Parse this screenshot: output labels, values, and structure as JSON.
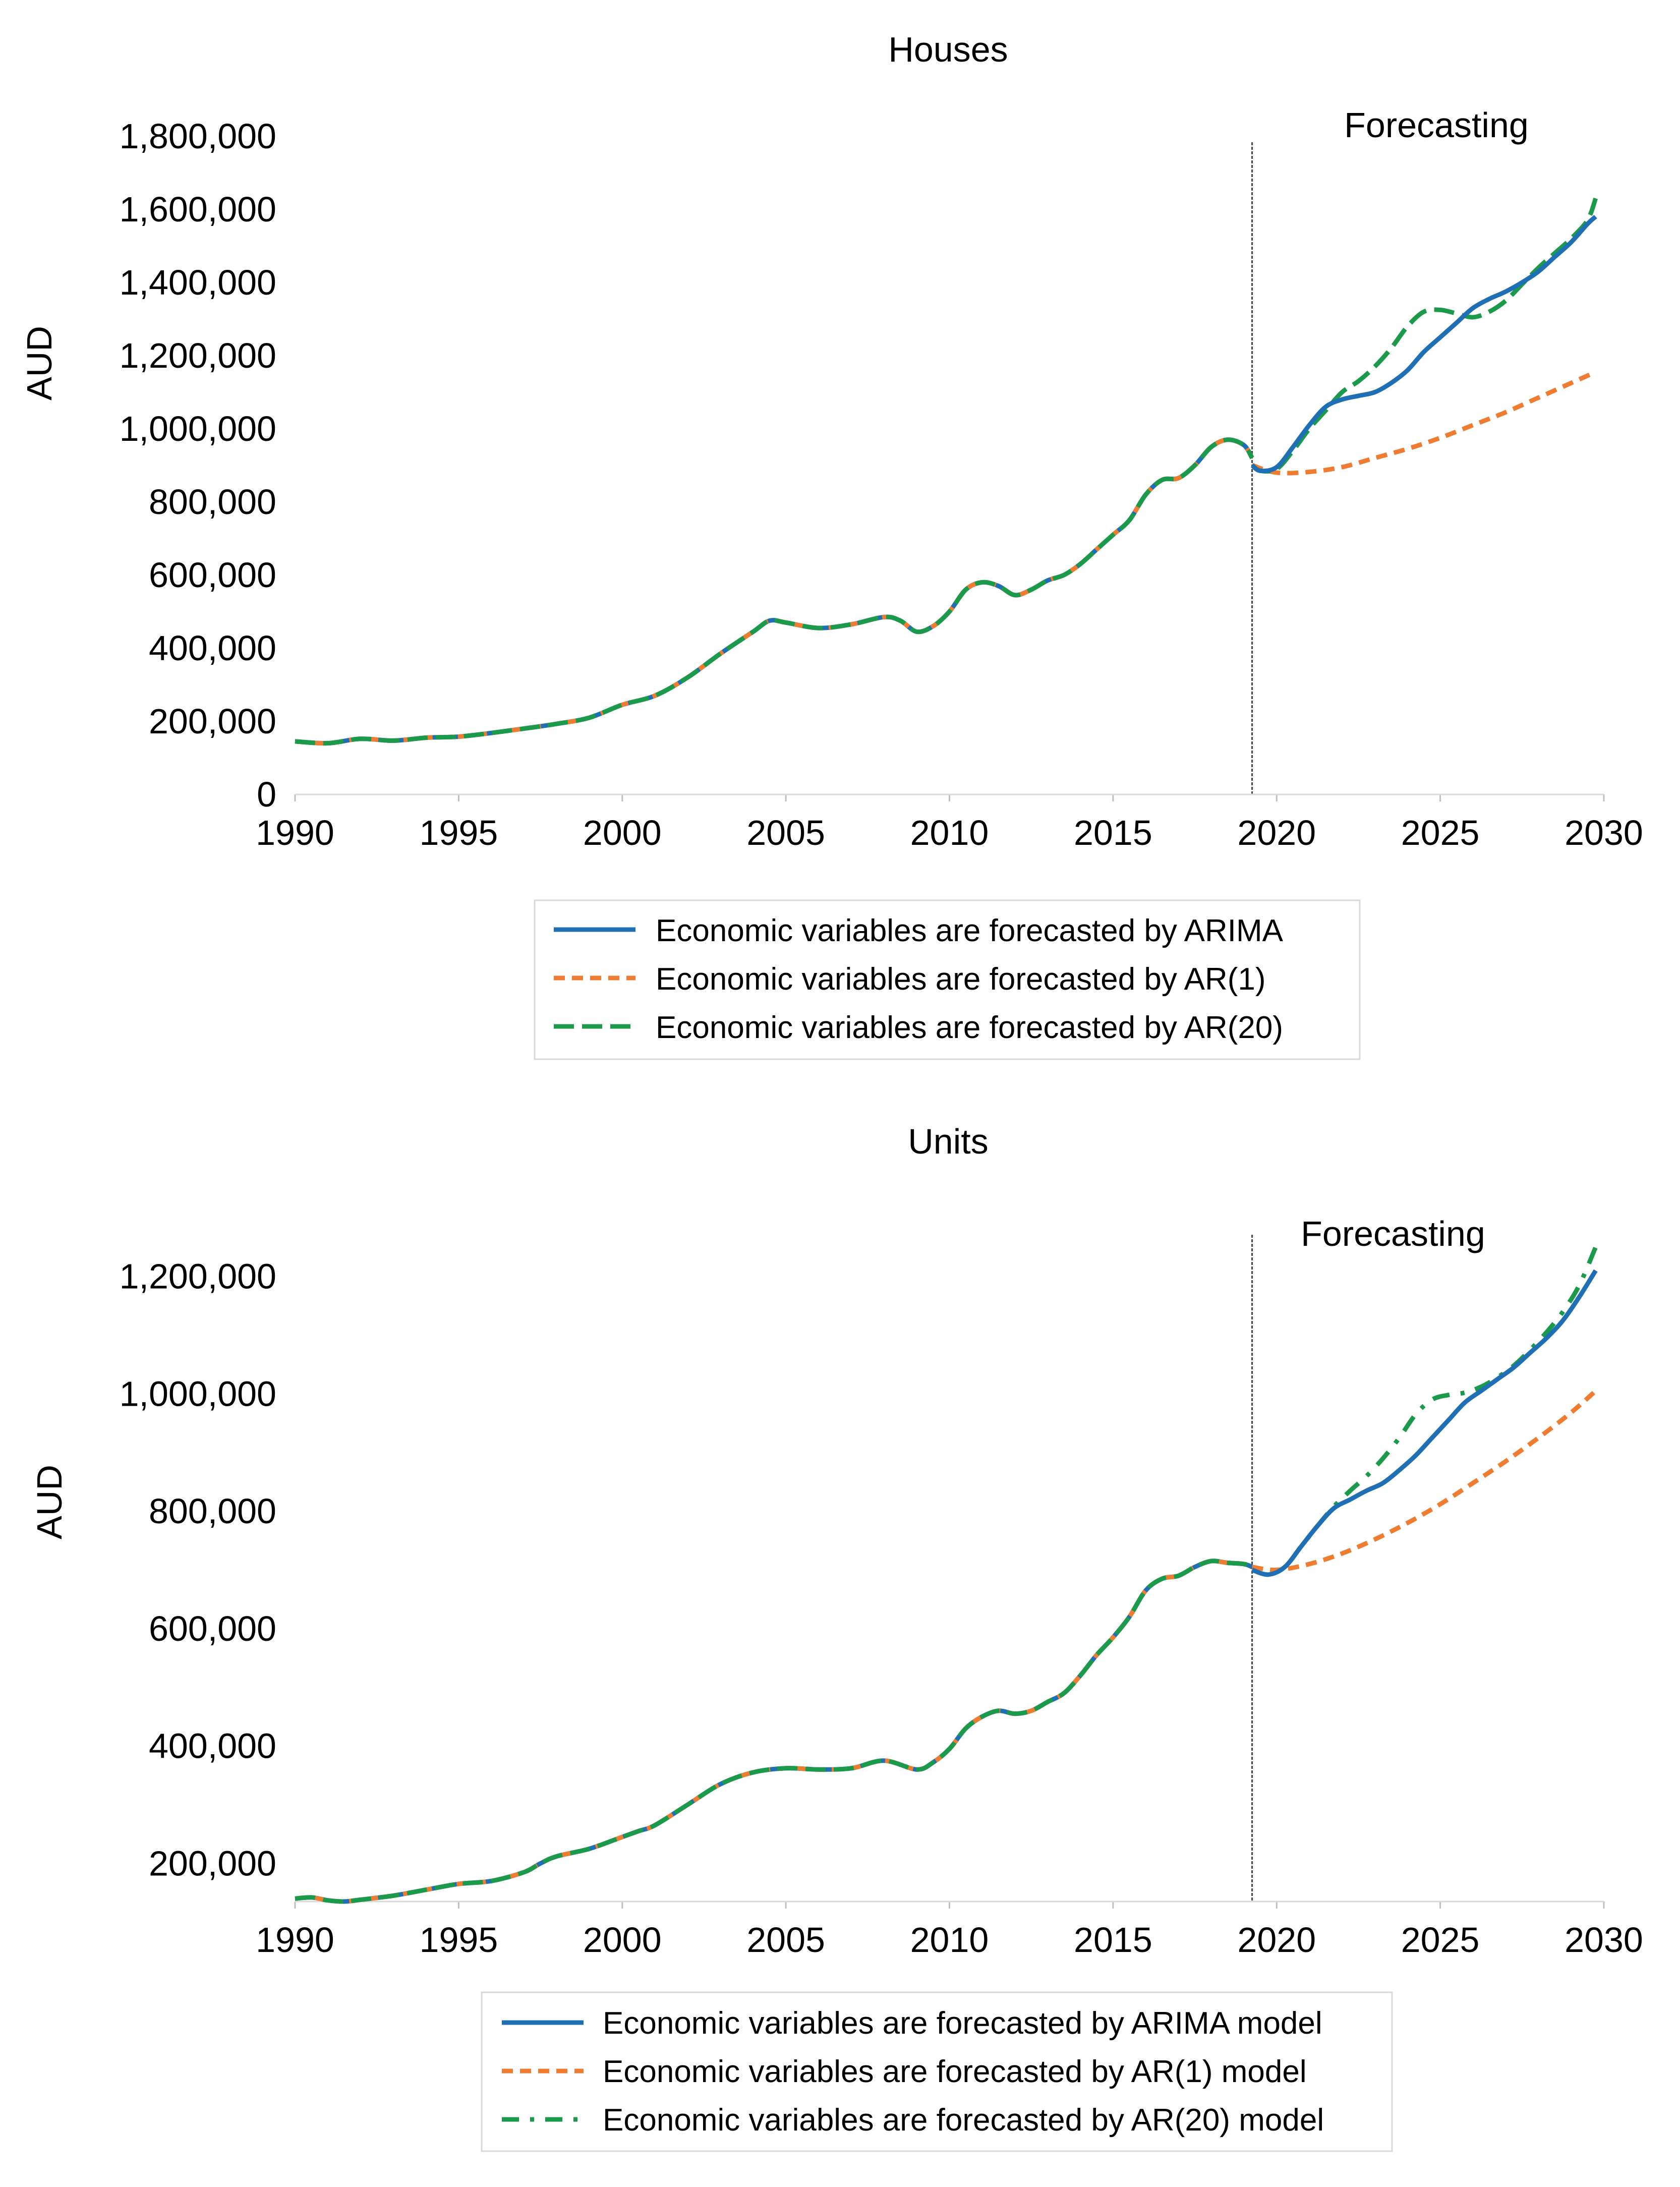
{
  "colors": {
    "arima": "#1f6fb4",
    "ar1": "#ee7d31",
    "ar20": "#1a9a4a",
    "vline": "#444444",
    "legend_border": "#d9d9d9"
  },
  "chart_data": [
    {
      "type": "line",
      "title": "Houses",
      "ylabel": "AUD",
      "xlabel": "",
      "annotation": "Forecasting",
      "forecast_start": 2019.25,
      "xlim": [
        1990,
        2030
      ],
      "ylim": [
        0,
        1800000
      ],
      "x_ticks": [
        1990,
        1995,
        2000,
        2005,
        2010,
        2015,
        2020,
        2025,
        2030
      ],
      "x_tick_labels": [
        "1990",
        "1995",
        "2000",
        "2005",
        "2010",
        "2015",
        "2020",
        "2025",
        "2030"
      ],
      "y_ticks": [
        0,
        200000,
        400000,
        600000,
        800000,
        1000000,
        1200000,
        1400000,
        1600000,
        1800000
      ],
      "y_tick_labels": [
        "0",
        "200,000",
        "400,000",
        "600,000",
        "800,000",
        "1,000,000",
        "1,200,000",
        "1,400,000",
        "1,600,000",
        "1,800,000"
      ],
      "legend": [
        "Economic variables are forecasted by ARIMA",
        "Economic variables are forecasted by AR(1)",
        "Economic variables are forecasted by AR(20)"
      ],
      "series": [
        {
          "name": "Economic variables are forecasted by ARIMA",
          "color_key": "arima",
          "dash": "",
          "x": [
            2019.25,
            2019.5,
            2020,
            2020.5,
            2021,
            2021.5,
            2022,
            2022.5,
            2023,
            2023.5,
            2024,
            2024.5,
            2025,
            2025.5,
            2026,
            2026.5,
            2027,
            2027.5,
            2028,
            2028.5,
            2029,
            2029.5,
            2029.75
          ],
          "values": [
            900000,
            885000,
            895000,
            950000,
            1010000,
            1060000,
            1080000,
            1090000,
            1100000,
            1125000,
            1160000,
            1210000,
            1250000,
            1290000,
            1330000,
            1355000,
            1375000,
            1400000,
            1430000,
            1470000,
            1510000,
            1560000,
            1580000
          ]
        },
        {
          "name": "Economic variables are forecasted by AR(1)",
          "color_key": "ar1",
          "dash": "22 14",
          "x": [
            2019.25,
            2020,
            2021,
            2022,
            2023,
            2024,
            2025,
            2026,
            2027,
            2028,
            2029,
            2029.75
          ],
          "values": [
            900000,
            880000,
            882000,
            895000,
            920000,
            945000,
            975000,
            1010000,
            1045000,
            1085000,
            1125000,
            1155000
          ]
        },
        {
          "name": "Economic variables are forecasted by AR(20)",
          "color_key": "ar20",
          "dash": "40 16",
          "x": [
            2019.25,
            2019.5,
            2020,
            2020.5,
            2021,
            2021.5,
            2022,
            2022.5,
            2023,
            2023.5,
            2024,
            2024.5,
            2025,
            2025.5,
            2026,
            2026.5,
            2027,
            2027.5,
            2028,
            2028.5,
            2029,
            2029.5,
            2029.75
          ],
          "values": [
            900000,
            885000,
            890000,
            940000,
            1000000,
            1050000,
            1100000,
            1130000,
            1170000,
            1220000,
            1280000,
            1320000,
            1325000,
            1315000,
            1305000,
            1320000,
            1350000,
            1395000,
            1440000,
            1480000,
            1520000,
            1570000,
            1630000
          ]
        }
      ],
      "history": {
        "x": [
          1990,
          1991,
          1992,
          1993,
          1994,
          1995,
          1996,
          1997,
          1998,
          1999,
          2000,
          2001,
          2002,
          2003,
          2004,
          2004.5,
          2005,
          2006,
          2007,
          2008,
          2008.5,
          2009,
          2009.5,
          2010,
          2010.5,
          2011,
          2011.5,
          2012,
          2012.5,
          2013,
          2013.5,
          2014,
          2014.5,
          2015,
          2015.5,
          2016,
          2016.5,
          2017,
          2017.5,
          2018,
          2018.5,
          2019,
          2019.25
        ],
        "values": [
          145000,
          140000,
          152000,
          147000,
          155000,
          158000,
          168000,
          180000,
          193000,
          210000,
          245000,
          270000,
          320000,
          385000,
          445000,
          475000,
          470000,
          455000,
          465000,
          485000,
          475000,
          445000,
          460000,
          500000,
          560000,
          580000,
          570000,
          545000,
          560000,
          585000,
          600000,
          630000,
          670000,
          710000,
          750000,
          820000,
          860000,
          865000,
          900000,
          950000,
          970000,
          955000,
          920000
        ]
      }
    },
    {
      "type": "line",
      "title": "Units",
      "ylabel": "AUD",
      "xlabel": "",
      "annotation": "Forecasting",
      "forecast_start": 2019.25,
      "xlim": [
        1990,
        2030
      ],
      "ylim": [
        135000,
        1265000
      ],
      "x_ticks": [
        1990,
        1995,
        2000,
        2005,
        2010,
        2015,
        2020,
        2025,
        2030
      ],
      "x_tick_labels": [
        "1990",
        "1995",
        "2000",
        "2005",
        "2010",
        "2015",
        "2020",
        "2025",
        "2030"
      ],
      "y_ticks": [
        200000,
        400000,
        600000,
        800000,
        1000000,
        1200000
      ],
      "y_tick_labels": [
        "200,000",
        "400,000",
        "600,000",
        "800,000",
        "1,000,000",
        "1,200,000"
      ],
      "legend": [
        "Economic variables are forecasted by ARIMA model",
        "Economic variables are forecasted by AR(1) model",
        "Economic variables are forecasted by AR(20) model"
      ],
      "series": [
        {
          "name": "Economic variables are forecasted by ARIMA model",
          "color_key": "arima",
          "dash": "",
          "x": [
            2019.25,
            2019.75,
            2020.25,
            2020.75,
            2021.25,
            2021.75,
            2022.25,
            2022.75,
            2023.25,
            2023.75,
            2024.25,
            2024.75,
            2025.25,
            2025.75,
            2026.25,
            2026.75,
            2027.25,
            2027.75,
            2028.25,
            2028.75,
            2029.25,
            2029.75
          ],
          "values": [
            700000,
            692000,
            705000,
            740000,
            775000,
            805000,
            820000,
            835000,
            848000,
            870000,
            895000,
            925000,
            955000,
            985000,
            1005000,
            1025000,
            1045000,
            1070000,
            1095000,
            1125000,
            1165000,
            1210000
          ]
        },
        {
          "name": "Economic variables are forecasted by AR(1) model",
          "color_key": "ar1",
          "dash": "22 14",
          "x": [
            2019.25,
            2020,
            2021,
            2022,
            2023,
            2024,
            2025,
            2026,
            2027,
            2028,
            2029,
            2029.75
          ],
          "values": [
            705000,
            700000,
            710000,
            728000,
            752000,
            780000,
            812000,
            848000,
            885000,
            925000,
            968000,
            1005000
          ]
        },
        {
          "name": "Economic variables are forecasted by AR(20) model",
          "color_key": "ar20",
          "dash": "34 22 8 22",
          "x": [
            2019.25,
            2019.75,
            2020.25,
            2020.75,
            2021.25,
            2021.75,
            2022.25,
            2022.75,
            2023.25,
            2023.75,
            2024.25,
            2024.75,
            2025.25,
            2025.75,
            2026.25,
            2026.75,
            2027.25,
            2027.75,
            2028.25,
            2028.75,
            2029.25,
            2029.75
          ],
          "values": [
            700000,
            692000,
            705000,
            740000,
            775000,
            808000,
            835000,
            860000,
            890000,
            925000,
            965000,
            990000,
            998000,
            1002000,
            1012000,
            1028000,
            1048000,
            1075000,
            1105000,
            1140000,
            1185000,
            1250000
          ]
        }
      ],
      "history": {
        "x": [
          1990,
          1990.5,
          1991,
          1991.5,
          1992,
          1993,
          1994,
          1995,
          1996,
          1997,
          1997.5,
          1998,
          1999,
          2000,
          2000.5,
          2001,
          2002,
          2003,
          2004,
          2005,
          2006,
          2007,
          2008,
          2009,
          2009.5,
          2010,
          2010.5,
          2011,
          2011.5,
          2012,
          2012.5,
          2013,
          2013.5,
          2014,
          2014.5,
          2015,
          2015.5,
          2016,
          2016.5,
          2017,
          2017.5,
          2018,
          2018.5,
          2019,
          2019.25
        ],
        "values": [
          140000,
          142000,
          137000,
          135000,
          138000,
          145000,
          155000,
          165000,
          170000,
          185000,
          200000,
          212000,
          225000,
          245000,
          255000,
          265000,
          300000,
          335000,
          355000,
          362000,
          360000,
          362000,
          375000,
          360000,
          372000,
          395000,
          430000,
          450000,
          460000,
          455000,
          460000,
          475000,
          490000,
          520000,
          555000,
          585000,
          620000,
          665000,
          685000,
          690000,
          705000,
          715000,
          712000,
          710000,
          705000
        ]
      }
    }
  ]
}
